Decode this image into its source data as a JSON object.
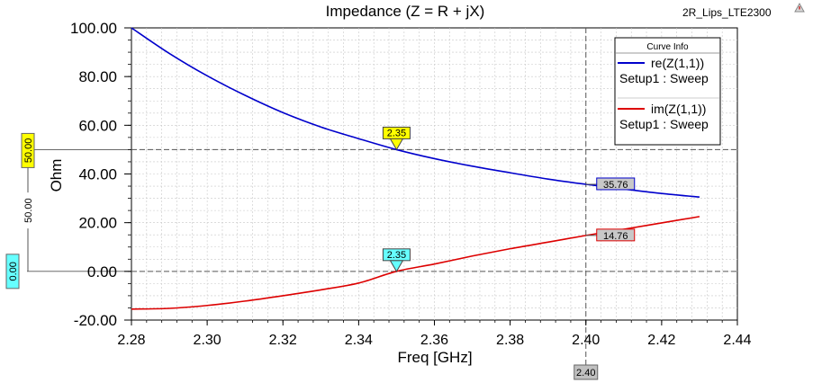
{
  "chart_data": {
    "type": "line",
    "title": "Impedance (Z = R + jX)",
    "design_name": "2R_Lips_LTE2300",
    "xlabel": "Freq [GHz]",
    "ylabel": "Ohm",
    "xlim": [
      2.28,
      2.44
    ],
    "ylim": [
      -20,
      100
    ],
    "x_ticks": [
      "2.28",
      "2.30",
      "2.32",
      "2.34",
      "2.36",
      "2.38",
      "2.40",
      "2.42",
      "2.44"
    ],
    "y_ticks": [
      "100.00",
      "80.00",
      "60.00",
      "40.00",
      "20.00",
      "0.00",
      "-20.00"
    ],
    "grid": true,
    "legend": {
      "title": "Curve Info",
      "placement": "top-right",
      "entries": [
        {
          "name": "re(Z(1,1))",
          "sub": "Setup1 : Sweep",
          "color": "#0000cc"
        },
        {
          "name": "im(Z(1,1))",
          "sub": "Setup1 : Sweep",
          "color": "#dd0000"
        }
      ]
    },
    "series": [
      {
        "name": "re(Z(1,1))",
        "color": "#0000cc",
        "x": [
          2.28,
          2.29,
          2.3,
          2.31,
          2.32,
          2.33,
          2.34,
          2.35,
          2.36,
          2.37,
          2.38,
          2.39,
          2.4,
          2.41,
          2.42,
          2.43
        ],
        "values": [
          100,
          89.5,
          80.3,
          72.3,
          65.2,
          59.3,
          54.5,
          50.0,
          46.3,
          43.2,
          40.5,
          37.9,
          35.76,
          33.8,
          32.0,
          30.5
        ]
      },
      {
        "name": "im(Z(1,1))",
        "color": "#dd0000",
        "x": [
          2.28,
          2.29,
          2.3,
          2.31,
          2.32,
          2.33,
          2.34,
          2.35,
          2.36,
          2.37,
          2.38,
          2.39,
          2.4,
          2.41,
          2.42,
          2.43
        ],
        "values": [
          -15.5,
          -15.2,
          -14.0,
          -12.2,
          -10.0,
          -7.6,
          -4.8,
          0.0,
          3.0,
          6.3,
          9.3,
          12.0,
          14.76,
          17.3,
          19.9,
          22.5
        ]
      }
    ],
    "markers": [
      {
        "label": "2.35",
        "x": 2.35,
        "y": 50.0,
        "color": "#ffff00"
      },
      {
        "label": "2.35",
        "x": 2.35,
        "y": 0.0,
        "color": "#66ffff"
      }
    ],
    "value_labels": [
      {
        "label": "35.76",
        "x": 2.4,
        "y": 35.76,
        "border": "#0000cc"
      },
      {
        "label": "14.76",
        "x": 2.4,
        "y": 14.76,
        "border": "#dd0000"
      }
    ],
    "h_cursors": [
      {
        "value": 50.0,
        "label": "50.00",
        "color": "#ffff00"
      },
      {
        "value": 0.0,
        "label": "0.00",
        "color": "#66ffff"
      }
    ],
    "delta_label": "50.00",
    "v_cursor": {
      "value": 2.4,
      "label": "2.40"
    }
  }
}
